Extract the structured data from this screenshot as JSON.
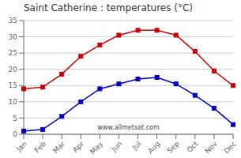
{
  "chart_data": {
    "type": "line",
    "title": "Saint Catherine : temperatures (°C)",
    "categories": [
      "Jan",
      "Feb",
      "Mar",
      "Apr",
      "May",
      "Jun",
      "Jul",
      "Aug",
      "Sep",
      "Oct",
      "Nov",
      "Dec"
    ],
    "series": [
      {
        "color": "#cc0000",
        "marker": "square",
        "values": [
          14,
          14.5,
          18.5,
          24,
          27.5,
          30.5,
          32,
          32,
          30.5,
          25.5,
          19.5,
          15
        ]
      },
      {
        "color": "#0000cc",
        "marker": "square",
        "values": [
          1,
          1.5,
          5.5,
          10,
          14,
          15.5,
          17,
          17.5,
          15.5,
          12,
          8,
          3
        ]
      }
    ],
    "ylim": [
      0,
      35
    ],
    "yticks": [
      0,
      5,
      10,
      15,
      20,
      25,
      30,
      35
    ],
    "grid": true,
    "annotations": [
      "www.allmetsat.com"
    ]
  }
}
